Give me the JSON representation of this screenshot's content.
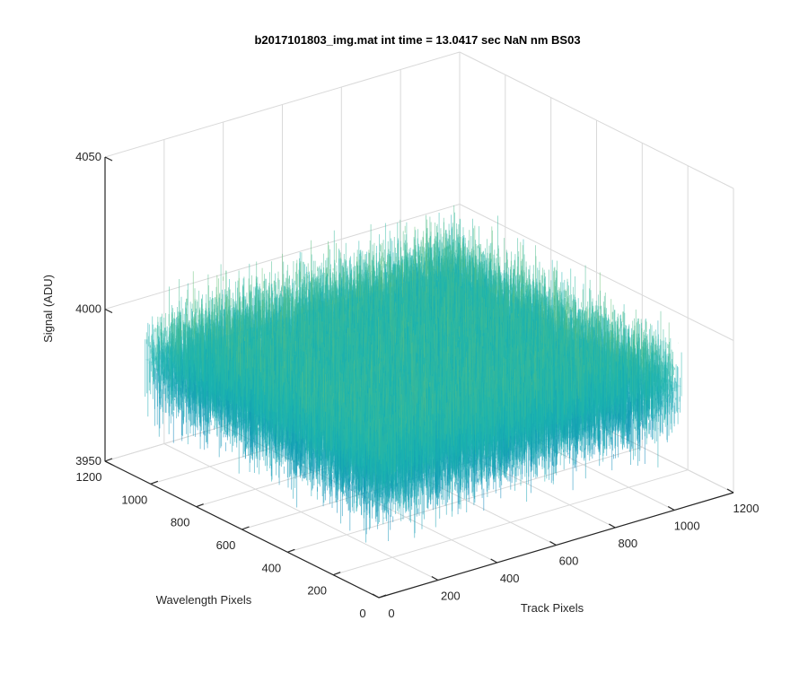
{
  "chart_data": {
    "type": "surface",
    "title": "b2017101803_img.mat int time = 13.0417 sec  NaN nm BS03",
    "xlabel": "Track Pixels",
    "ylabel": "Wavelength Pixels",
    "zlabel": "Signal (ADU)",
    "xlim": [
      0,
      1200
    ],
    "ylim": [
      0,
      1200
    ],
    "zlim": [
      3950,
      4050
    ],
    "xticks": [
      "0",
      "200",
      "400",
      "600",
      "800",
      "1000",
      "1200"
    ],
    "yticks": [
      "0",
      "200",
      "400",
      "600",
      "800",
      "1000",
      "1200"
    ],
    "zticks": [
      "3950",
      "4000",
      "4050"
    ],
    "surface": {
      "x_range": [
        0,
        1024
      ],
      "y_range": [
        0,
        1024
      ],
      "mean_signal": 3990,
      "noise_range": [
        3965,
        4030
      ],
      "colormap": "parula"
    },
    "grid": true,
    "box": true
  },
  "colors": {
    "grid": "#d9d9d9",
    "axis": "#262626",
    "surface_low": "#0072bd",
    "surface_mid": "#1bb5b0",
    "surface_high": "#e6e04a"
  }
}
